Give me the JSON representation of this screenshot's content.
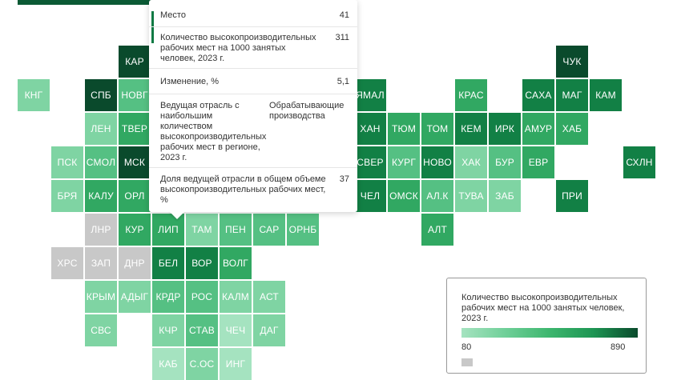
{
  "colors": {
    "c1": "#a5e3c0",
    "c2": "#7fd4a3",
    "c3": "#55c083",
    "c4": "#31a862",
    "c5": "#128045",
    "c6": "#0a4a2c",
    "nodata": "#c8c8c8"
  },
  "map": {
    "regions": [
      {
        "label": "КАР",
        "value_class": "c6",
        "col": 3,
        "row": 0
      },
      {
        "label": "ЧУК",
        "value_class": "c6",
        "col": 16,
        "row": 0
      },
      {
        "label": "КНГ",
        "value_class": "c2",
        "col": 0,
        "row": 1
      },
      {
        "label": "СПБ",
        "value_class": "c6",
        "col": 2,
        "row": 1
      },
      {
        "label": "НОВГ",
        "value_class": "c3",
        "col": 3,
        "row": 1
      },
      {
        "label": "ЯМАЛ",
        "value_class": "c5",
        "col": 10,
        "row": 1
      },
      {
        "label": "КРАС",
        "value_class": "c4",
        "col": 13,
        "row": 1
      },
      {
        "label": "САХА",
        "value_class": "c5",
        "col": 15,
        "row": 1
      },
      {
        "label": "МАГ",
        "value_class": "c5",
        "col": 16,
        "row": 1
      },
      {
        "label": "КАМ",
        "value_class": "c5",
        "col": 17,
        "row": 1
      },
      {
        "label": "ЛЕН",
        "value_class": "c2",
        "col": 2,
        "row": 2
      },
      {
        "label": "ТВЕР",
        "value_class": "c4",
        "col": 3,
        "row": 2
      },
      {
        "label": "ХАН",
        "value_class": "c5",
        "col": 10,
        "row": 2
      },
      {
        "label": "ТЮМ",
        "value_class": "c4",
        "col": 11,
        "row": 2
      },
      {
        "label": "ТОМ",
        "value_class": "c4",
        "col": 12,
        "row": 2
      },
      {
        "label": "КЕМ",
        "value_class": "c5",
        "col": 13,
        "row": 2
      },
      {
        "label": "ИРК",
        "value_class": "c5",
        "col": 14,
        "row": 2
      },
      {
        "label": "АМУР",
        "value_class": "c4",
        "col": 15,
        "row": 2
      },
      {
        "label": "ХАБ",
        "value_class": "c4",
        "col": 16,
        "row": 2
      },
      {
        "label": "ПСК",
        "value_class": "c2",
        "col": 1,
        "row": 3
      },
      {
        "label": "СМОЛ",
        "value_class": "c3",
        "col": 2,
        "row": 3
      },
      {
        "label": "МСК",
        "value_class": "c6",
        "col": 3,
        "row": 3
      },
      {
        "label": "СВЕР",
        "value_class": "c5",
        "col": 10,
        "row": 3
      },
      {
        "label": "КУРГ",
        "value_class": "c3",
        "col": 11,
        "row": 3
      },
      {
        "label": "НОВО",
        "value_class": "c5",
        "col": 12,
        "row": 3
      },
      {
        "label": "ХАК",
        "value_class": "c2",
        "col": 13,
        "row": 3
      },
      {
        "label": "БУР",
        "value_class": "c3",
        "col": 14,
        "row": 3
      },
      {
        "label": "ЕВР",
        "value_class": "c4",
        "col": 15,
        "row": 3
      },
      {
        "label": "СХЛН",
        "value_class": "c5",
        "col": 18,
        "row": 3
      },
      {
        "label": "БРЯ",
        "value_class": "c2",
        "col": 1,
        "row": 4
      },
      {
        "label": "КАЛУ",
        "value_class": "c4",
        "col": 2,
        "row": 4
      },
      {
        "label": "ОРЛ",
        "value_class": "c4",
        "col": 3,
        "row": 4
      },
      {
        "label": "ЧЕЛ",
        "value_class": "c5",
        "col": 10,
        "row": 4
      },
      {
        "label": "ОМСК",
        "value_class": "c4",
        "col": 11,
        "row": 4
      },
      {
        "label": "АЛ.К",
        "value_class": "c3",
        "col": 12,
        "row": 4
      },
      {
        "label": "ТУВА",
        "value_class": "c2",
        "col": 13,
        "row": 4
      },
      {
        "label": "ЗАБ",
        "value_class": "c2",
        "col": 14,
        "row": 4
      },
      {
        "label": "ПРИ",
        "value_class": "c5",
        "col": 16,
        "row": 4
      },
      {
        "label": "ЛНР",
        "value_class": "nodata",
        "col": 2,
        "row": 5
      },
      {
        "label": "КУР",
        "value_class": "c4",
        "col": 3,
        "row": 5
      },
      {
        "label": "ЛИП",
        "value_class": "c4",
        "col": 4,
        "row": 5
      },
      {
        "label": "ТАМ",
        "value_class": "c2",
        "col": 5,
        "row": 5
      },
      {
        "label": "ПЕН",
        "value_class": "c3",
        "col": 6,
        "row": 5
      },
      {
        "label": "САР",
        "value_class": "c3",
        "col": 7,
        "row": 5
      },
      {
        "label": "ОРНБ",
        "value_class": "c3",
        "col": 8,
        "row": 5
      },
      {
        "label": "АЛТ",
        "value_class": "c4",
        "col": 12,
        "row": 5
      },
      {
        "label": "ХРС",
        "value_class": "nodata",
        "col": 1,
        "row": 6
      },
      {
        "label": "ЗАП",
        "value_class": "nodata",
        "col": 2,
        "row": 6
      },
      {
        "label": "ДНР",
        "value_class": "nodata",
        "col": 3,
        "row": 6
      },
      {
        "label": "БЕЛ",
        "value_class": "c5",
        "col": 4,
        "row": 6
      },
      {
        "label": "ВОР",
        "value_class": "c5",
        "col": 5,
        "row": 6
      },
      {
        "label": "ВОЛГ",
        "value_class": "c4",
        "col": 6,
        "row": 6
      },
      {
        "label": "КРЫМ",
        "value_class": "c2",
        "col": 2,
        "row": 7
      },
      {
        "label": "АДЫГ",
        "value_class": "c2",
        "col": 3,
        "row": 7
      },
      {
        "label": "КРДР",
        "value_class": "c3",
        "col": 4,
        "row": 7
      },
      {
        "label": "РОС",
        "value_class": "c3",
        "col": 5,
        "row": 7
      },
      {
        "label": "КАЛМ",
        "value_class": "c2",
        "col": 6,
        "row": 7
      },
      {
        "label": "АСТ",
        "value_class": "c2",
        "col": 7,
        "row": 7
      },
      {
        "label": "СВС",
        "value_class": "c2",
        "col": 2,
        "row": 8
      },
      {
        "label": "КЧР",
        "value_class": "c2",
        "col": 4,
        "row": 8
      },
      {
        "label": "СТАВ",
        "value_class": "c3",
        "col": 5,
        "row": 8
      },
      {
        "label": "ЧЕЧ",
        "value_class": "c1",
        "col": 6,
        "row": 8
      },
      {
        "label": "ДАГ",
        "value_class": "c2",
        "col": 7,
        "row": 8
      },
      {
        "label": "КАБ",
        "value_class": "c1",
        "col": 4,
        "row": 9
      },
      {
        "label": "С.ОС",
        "value_class": "c2",
        "col": 5,
        "row": 9
      },
      {
        "label": "ИНГ",
        "value_class": "c1",
        "col": 6,
        "row": 9
      }
    ]
  },
  "tooltip": {
    "rows": [
      {
        "label": "Место",
        "value": "41"
      },
      {
        "label": "Количество высокопроизводительных рабочих мест на 1000 занятых человек, 2023 г.",
        "value": "311"
      },
      {
        "label": "Изменение, %",
        "value": "5,1"
      },
      {
        "label": "Ведущая отрасль с наибольшим количеством высокопроизводительных рабочих мест в регионе, 2023 г.",
        "value": "Обрабатывающие производства"
      },
      {
        "label": "Доля ведущей отрасли в общем объеме высокопроизводительных рабочих мест, %",
        "value": "37"
      }
    ]
  },
  "legend": {
    "title": "Количество высокопроизводительных рабочих мест на 1000 занятых человек, 2023 г.",
    "min": "80",
    "max": "890"
  }
}
